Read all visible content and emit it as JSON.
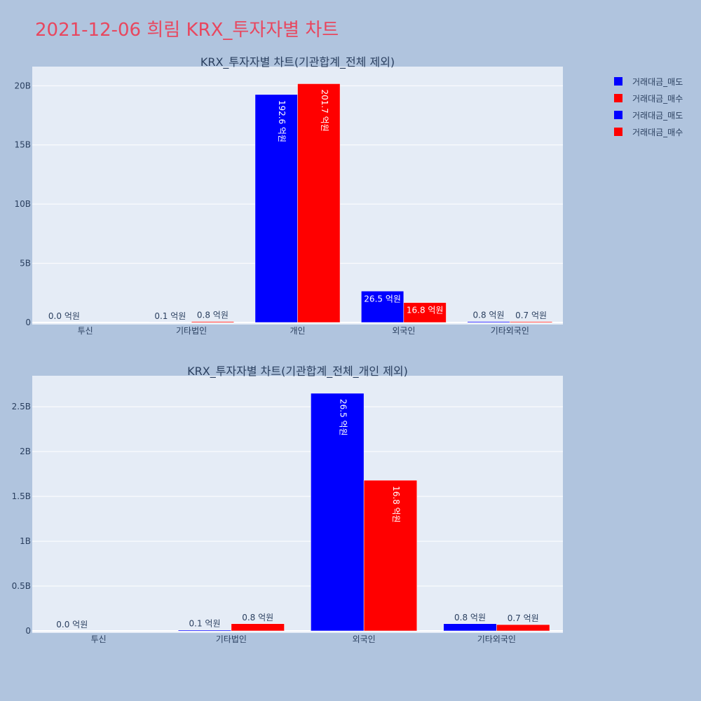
{
  "page": {
    "title": "2021-12-06 희림 KRX_투자자별 차트"
  },
  "colors": {
    "sell": "#0000ff",
    "buy": "#ff0000",
    "plot_bg": "#e5ecf6",
    "page_bg": "#b0c4de"
  },
  "legend": [
    {
      "label": "거래대금_매도",
      "color": "#0000ff"
    },
    {
      "label": "거래대금_매수",
      "color": "#ff0000"
    },
    {
      "label": "거래대금_매도",
      "color": "#0000ff"
    },
    {
      "label": "거래대금_매수",
      "color": "#ff0000"
    }
  ],
  "chart_data": [
    {
      "type": "bar",
      "title": "KRX_투자자별 차트(기관합계_전체 제외)",
      "categories": [
        "투신",
        "기타법인",
        "개인",
        "외국인",
        "기타외국인"
      ],
      "series": [
        {
          "name": "거래대금_매도",
          "values": [
            0,
            10000000,
            19260000000,
            2650000000,
            80000000
          ],
          "labels": [
            "0.0 억원",
            "0.1 억원",
            "192.6 억원",
            "26.5 억원",
            "0.8 억원"
          ]
        },
        {
          "name": "거래대금_매수",
          "values": [
            0,
            80000000,
            20170000000,
            1680000000,
            70000000
          ],
          "labels": [
            "",
            "0.8 억원",
            "201.7 억원",
            "16.8 억원",
            "0.7 억원"
          ]
        }
      ],
      "ylim": [
        0,
        21500000000
      ],
      "yticks": [
        0,
        5000000000,
        10000000000,
        15000000000,
        20000000000
      ],
      "ytick_labels": [
        "0",
        "5B",
        "10B",
        "15B",
        "20B"
      ],
      "grid": true
    },
    {
      "type": "bar",
      "title": "KRX_투자자별 차트(기관합계_전체_개인 제외)",
      "categories": [
        "투신",
        "기타법인",
        "외국인",
        "기타외국인"
      ],
      "series": [
        {
          "name": "거래대금_매도",
          "values": [
            0,
            10000000,
            2650000000,
            80000000
          ],
          "labels": [
            "0.0 억원",
            "0.1 억원",
            "26.5 억원",
            "0.8 억원"
          ]
        },
        {
          "name": "거래대금_매수",
          "values": [
            0,
            80000000,
            1680000000,
            70000000
          ],
          "labels": [
            "",
            "0.8 억원",
            "16.8 억원",
            "0.7 억원"
          ]
        }
      ],
      "ylim": [
        0,
        2830000000
      ],
      "yticks": [
        0,
        500000000,
        1000000000,
        1500000000,
        2000000000,
        2500000000
      ],
      "ytick_labels": [
        "0",
        "0.5B",
        "1B",
        "1.5B",
        "2B",
        "2.5B"
      ],
      "grid": true
    }
  ]
}
